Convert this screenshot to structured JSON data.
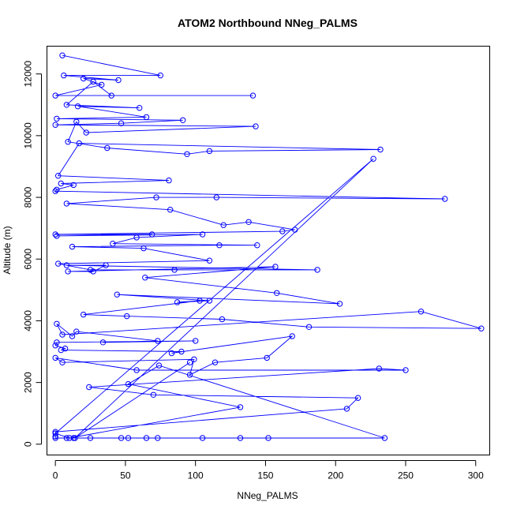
{
  "chart_data": {
    "type": "line",
    "title": "ATOM2 Northbound NNeg_PALMS",
    "xlabel": "NNeg_PALMS",
    "ylabel": "Altitude (m)",
    "xlim": [
      -6,
      310
    ],
    "ylim": [
      -350,
      12900
    ],
    "x_ticks": [
      0,
      50,
      100,
      150,
      200,
      250,
      300
    ],
    "y_ticks": [
      0,
      2000,
      4000,
      6000,
      8000,
      10000,
      12000
    ],
    "grid": false,
    "legend": "none",
    "color": "#0000FF",
    "marker": "open-circle",
    "series": [
      {
        "points": [
          [
            5,
            12600
          ],
          [
            75,
            11950
          ],
          [
            6,
            11950
          ],
          [
            45,
            11800
          ],
          [
            20,
            11850
          ],
          [
            33,
            11650
          ],
          [
            0,
            11300
          ],
          [
            141,
            11300
          ],
          [
            40,
            11300
          ],
          [
            27,
            11750
          ],
          [
            8,
            11000
          ],
          [
            60,
            10900
          ],
          [
            16,
            10950
          ],
          [
            65,
            10600
          ],
          [
            1,
            10550
          ],
          [
            91,
            10500
          ],
          [
            47,
            10400
          ],
          [
            0,
            10350
          ],
          [
            143,
            10300
          ],
          [
            22,
            10100
          ],
          [
            15,
            10450
          ],
          [
            9,
            9800
          ],
          [
            37,
            9600
          ],
          [
            94,
            9400
          ],
          [
            110,
            9500
          ],
          [
            232,
            9550
          ],
          [
            17,
            9750
          ],
          [
            2,
            8700
          ],
          [
            81,
            8550
          ],
          [
            4,
            8450
          ],
          [
            13,
            8400
          ],
          [
            1,
            8250
          ],
          [
            0,
            8200
          ],
          [
            278,
            7950
          ],
          [
            115,
            8000
          ],
          [
            72,
            8000
          ],
          [
            8,
            7800
          ],
          [
            82,
            7600
          ],
          [
            120,
            7100
          ],
          [
            138,
            7200
          ],
          [
            171,
            6950
          ],
          [
            162,
            6900
          ],
          [
            0,
            6800
          ],
          [
            69,
            6800
          ],
          [
            1,
            6750
          ],
          [
            105,
            6800
          ],
          [
            58,
            6700
          ],
          [
            41,
            6500
          ],
          [
            144,
            6450
          ],
          [
            117,
            6450
          ],
          [
            12,
            6400
          ],
          [
            63,
            6350
          ],
          [
            110,
            5950
          ],
          [
            2,
            5850
          ],
          [
            25,
            5650
          ],
          [
            85,
            5650
          ],
          [
            187,
            5650
          ],
          [
            8,
            5800
          ],
          [
            36,
            5800
          ],
          [
            27,
            5600
          ],
          [
            9,
            5600
          ],
          [
            157,
            5750
          ],
          [
            64,
            5400
          ],
          [
            158,
            4900
          ],
          [
            203,
            4550
          ],
          [
            44,
            4850
          ],
          [
            110,
            4650
          ],
          [
            87,
            4600
          ],
          [
            103,
            4650
          ],
          [
            20,
            4200
          ],
          [
            51,
            4150
          ],
          [
            119,
            4050
          ],
          [
            181,
            3800
          ],
          [
            304,
            3750
          ],
          [
            261,
            4300
          ],
          [
            5,
            3550
          ],
          [
            1,
            3900
          ],
          [
            12,
            3500
          ],
          [
            15,
            3650
          ],
          [
            73,
            3350
          ],
          [
            34,
            3300
          ],
          [
            100,
            3350
          ],
          [
            1,
            3300
          ],
          [
            0,
            3200
          ],
          [
            7,
            3100
          ],
          [
            4,
            3050
          ],
          [
            90,
            3000
          ],
          [
            83,
            2950
          ],
          [
            169,
            3500
          ],
          [
            151,
            2800
          ],
          [
            114,
            2650
          ],
          [
            96,
            2250
          ],
          [
            99,
            2750
          ],
          [
            5,
            2650
          ],
          [
            0,
            2800
          ],
          [
            58,
            2400
          ],
          [
            250,
            2400
          ],
          [
            231,
            2450
          ],
          [
            24,
            1850
          ],
          [
            70,
            1600
          ],
          [
            216,
            1500
          ],
          [
            208,
            1150
          ],
          [
            0,
            400
          ],
          [
            0,
            250
          ],
          [
            0,
            200
          ],
          [
            8,
            200
          ],
          [
            13,
            200
          ],
          [
            25,
            200
          ],
          [
            47,
            200
          ],
          [
            52,
            200
          ],
          [
            65,
            200
          ],
          [
            73,
            200
          ],
          [
            105,
            200
          ],
          [
            132,
            200
          ],
          [
            152,
            200
          ],
          [
            235,
            200
          ],
          [
            74,
            2550
          ],
          [
            52,
            1950
          ],
          [
            132,
            1200
          ],
          [
            10,
            200
          ],
          [
            0,
            350
          ],
          [
            227,
            9250
          ],
          [
            14,
            200
          ],
          [
            96,
            2650
          ]
        ]
      }
    ]
  }
}
